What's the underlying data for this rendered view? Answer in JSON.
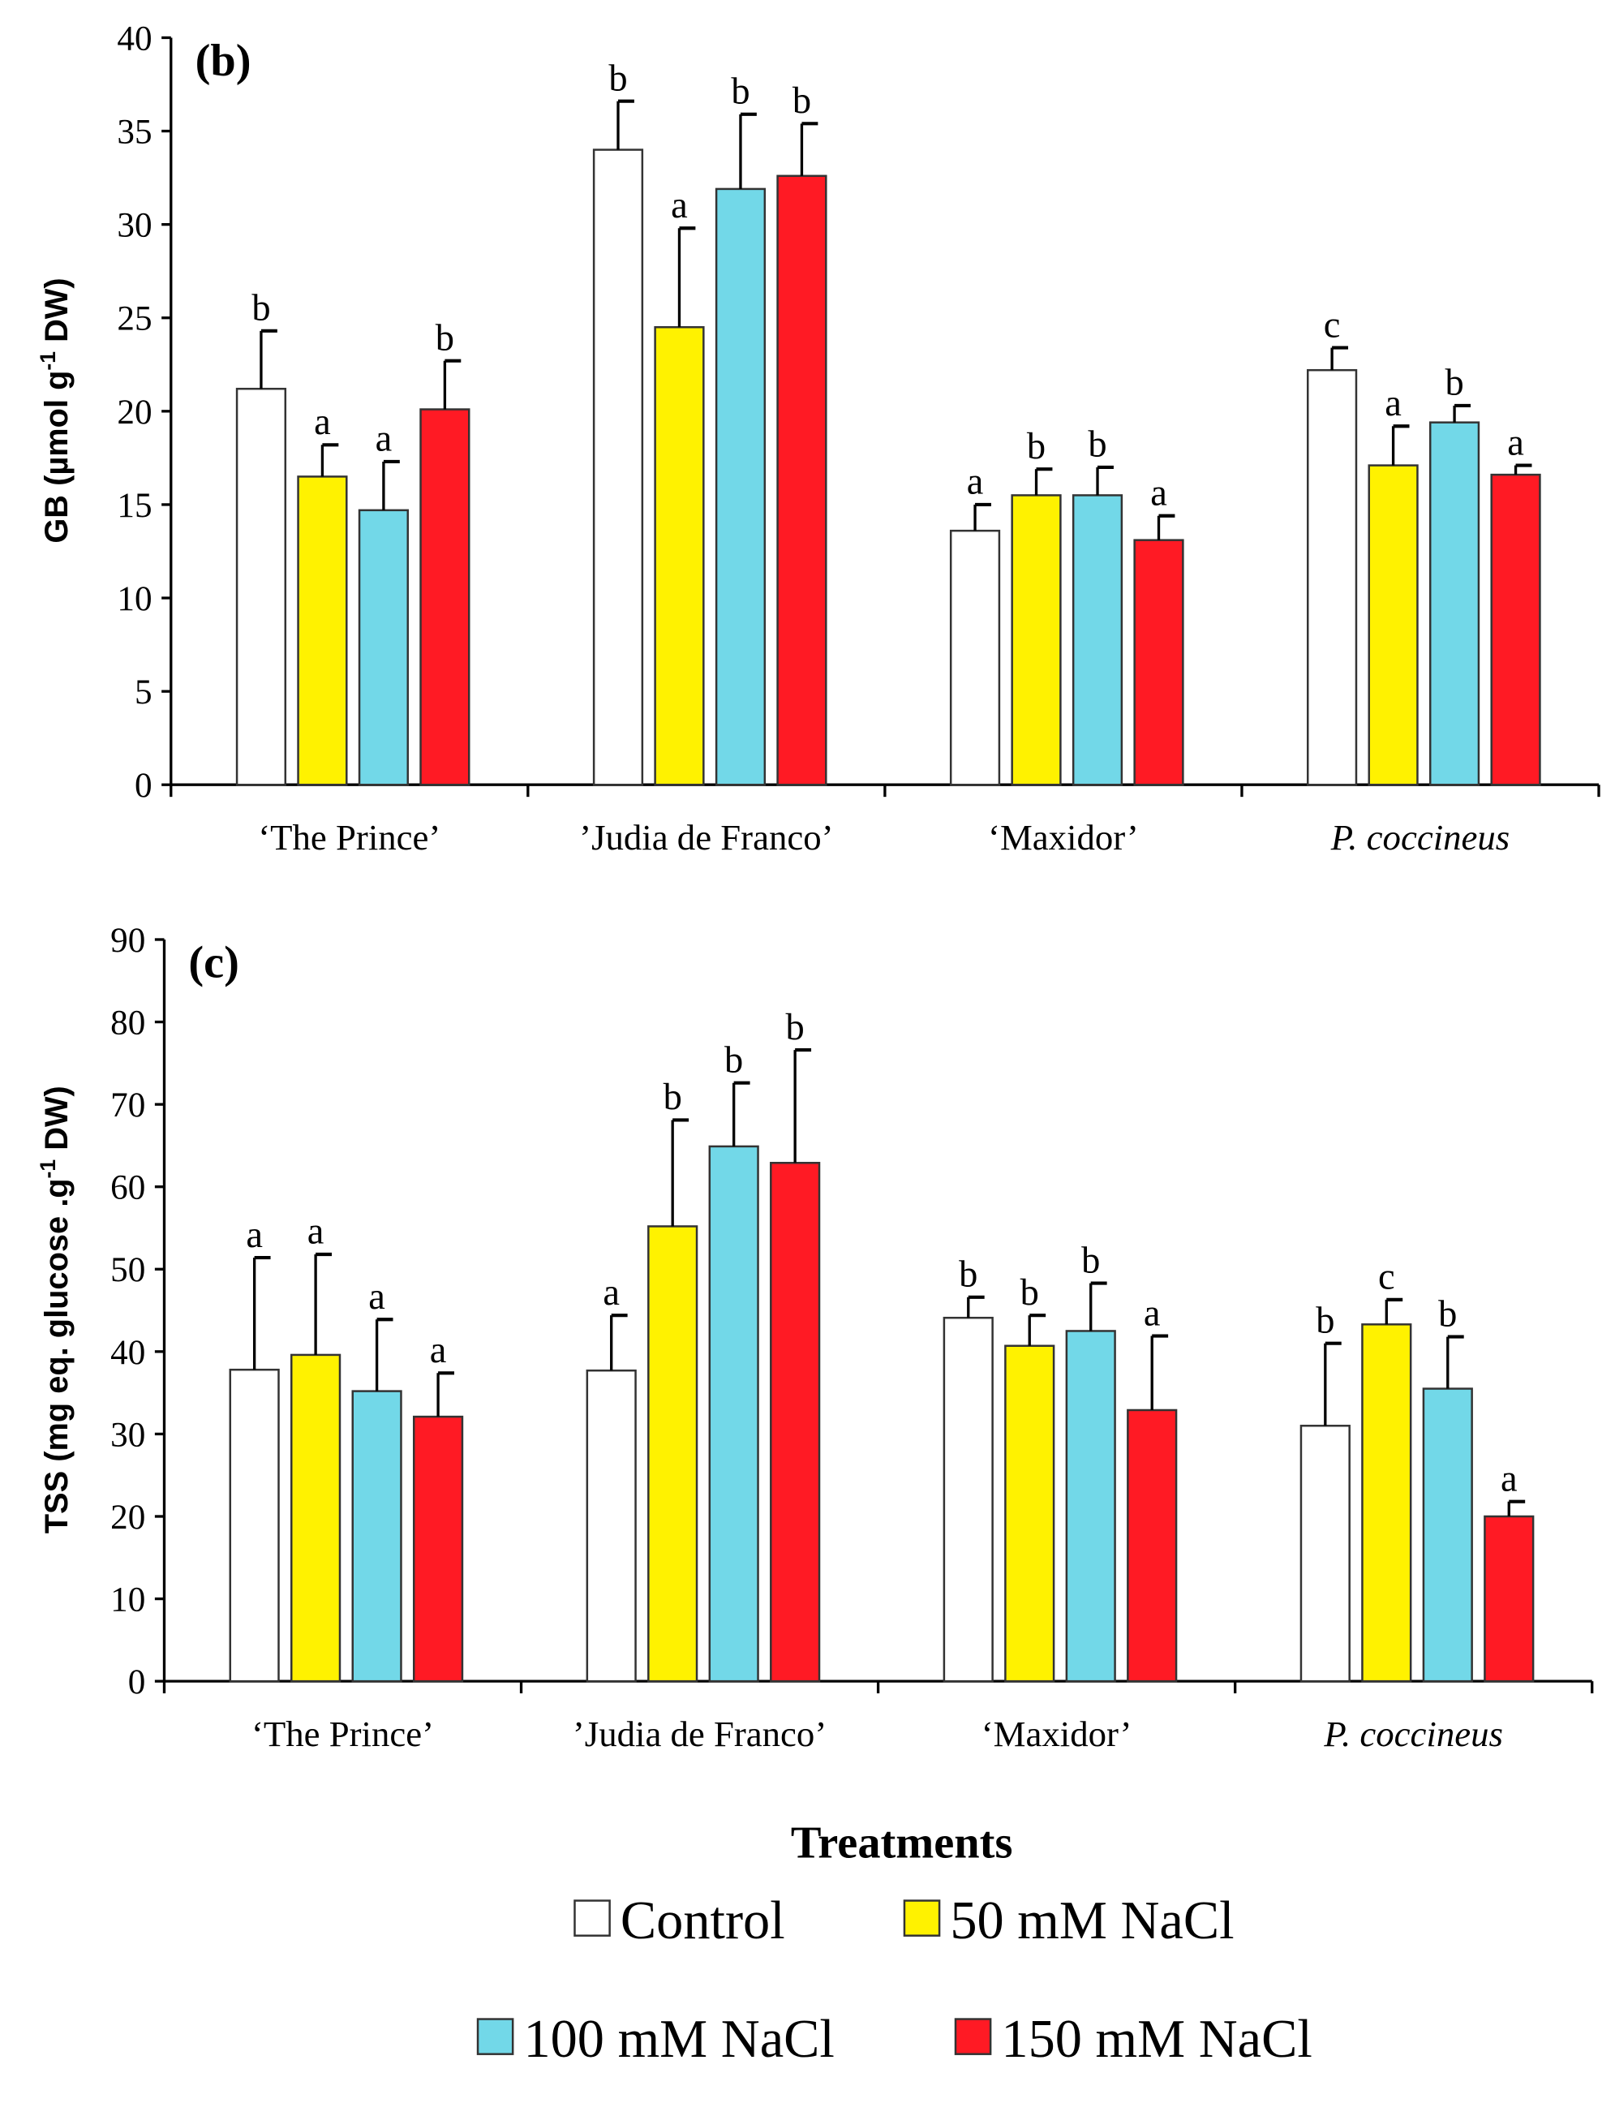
{
  "chart_data": [
    {
      "type": "bar",
      "panel": "(b)",
      "ylabel": "GB (µmol g-1 DW)",
      "ylabel_main": "GB (µmol g",
      "ylabel_sup": "-1",
      "ylabel_end": " DW)",
      "ylim": [
        0,
        40
      ],
      "yticks": [
        0,
        5,
        10,
        15,
        20,
        25,
        30,
        35,
        40
      ],
      "categories": [
        "‘The Prince’",
        "’Judia de Franco’",
        "‘Maxidor’",
        "P. coccineus"
      ],
      "series": [
        {
          "name": "Control",
          "values": [
            21.2,
            34.0,
            13.6,
            22.2
          ],
          "errors": [
            3.1,
            2.6,
            1.4,
            1.2
          ],
          "letters": [
            "b",
            "b",
            "a",
            "c"
          ]
        },
        {
          "name": "50 mM NaCl",
          "values": [
            16.5,
            24.5,
            15.5,
            17.1
          ],
          "errors": [
            1.7,
            5.3,
            1.4,
            2.1
          ],
          "letters": [
            "a",
            "a",
            "b",
            "a"
          ]
        },
        {
          "name": "100 mM NaCl",
          "values": [
            14.7,
            31.9,
            15.5,
            19.4
          ],
          "errors": [
            2.6,
            4.0,
            1.5,
            0.9
          ],
          "letters": [
            "a",
            "b",
            "b",
            "b"
          ]
        },
        {
          "name": "150 mM NaCl",
          "values": [
            20.1,
            32.6,
            13.1,
            16.6
          ],
          "errors": [
            2.6,
            2.8,
            1.3,
            0.5
          ],
          "letters": [
            "b",
            "b",
            "a",
            "a"
          ]
        }
      ]
    },
    {
      "type": "bar",
      "panel": "(c)",
      "ylabel": "TSS (mg eq. glucose .g-1 DW)",
      "ylabel_main": "TSS (mg eq. glucose .g",
      "ylabel_sup": "-1",
      "ylabel_end": " DW)",
      "ylim": [
        0,
        90
      ],
      "yticks": [
        0,
        10,
        20,
        30,
        40,
        50,
        60,
        70,
        80,
        90
      ],
      "categories": [
        "‘The Prince’",
        "’Judia de Franco’",
        "‘Maxidor’",
        "P. coccineus"
      ],
      "series": [
        {
          "name": "Control",
          "values": [
            37.8,
            37.7,
            44.1,
            31.0
          ],
          "errors": [
            13.6,
            6.7,
            2.5,
            10.0
          ],
          "letters": [
            "a",
            "a",
            "b",
            "b"
          ]
        },
        {
          "name": "50 mM NaCl",
          "values": [
            39.6,
            55.2,
            40.7,
            43.3
          ],
          "errors": [
            12.2,
            12.9,
            3.7,
            3.0
          ],
          "letters": [
            "a",
            "b",
            "b",
            "c"
          ]
        },
        {
          "name": "100 mM NaCl",
          "values": [
            35.2,
            64.9,
            42.5,
            35.5
          ],
          "errors": [
            8.7,
            7.7,
            5.8,
            6.3
          ],
          "letters": [
            "a",
            "b",
            "b",
            "b"
          ]
        },
        {
          "name": "150 mM NaCl",
          "values": [
            32.1,
            62.9,
            32.9,
            20.0
          ],
          "errors": [
            5.3,
            13.7,
            9.0,
            1.8
          ],
          "letters": [
            "a",
            "b",
            "a",
            "a"
          ]
        }
      ]
    }
  ],
  "xlabel": "Treatments",
  "legend": [
    "Control",
    "50 mM NaCl",
    "100 mM NaCl",
    "150 mM NaCl"
  ],
  "colors": [
    "#ffffff",
    "#fff200",
    "#72d8e8",
    "#ff1a24"
  ]
}
